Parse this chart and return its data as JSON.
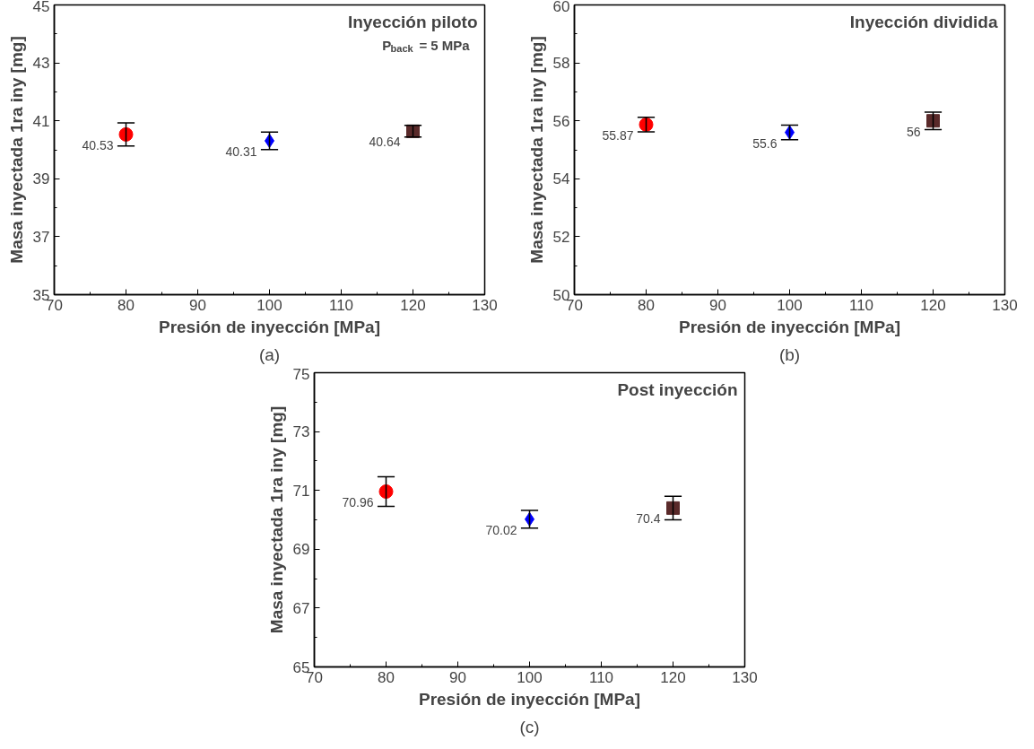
{
  "chart_data": [
    {
      "type": "scatter",
      "xlabel": "Presión de inyección [MPa]",
      "ylabel": "Masa inyectada 1ra iny [mg]",
      "xlim": [
        70,
        130
      ],
      "xticks": [
        70,
        80,
        90,
        100,
        110,
        120,
        130
      ],
      "ylim": [
        35,
        45
      ],
      "yticks": [
        35,
        37,
        39,
        41,
        43,
        45
      ],
      "grid": false,
      "annotations": [
        "Inyección piloto",
        "P$_{back}$ = 5 MPa",
        "(a)"
      ],
      "series": [
        {
          "color": "#ff0000",
          "marker": "circle",
          "x": [
            80
          ],
          "values": [
            40.53
          ],
          "errors": [
            0.4
          ],
          "value_labels": [
            "40.53"
          ]
        },
        {
          "color": "#0000ff",
          "marker": "diamond",
          "x": [
            100
          ],
          "values": [
            40.31
          ],
          "errors": [
            0.3
          ],
          "value_labels": [
            "40.31"
          ]
        },
        {
          "color": "#5a2a2a",
          "marker": "square",
          "x": [
            120
          ],
          "values": [
            40.64
          ],
          "errors": [
            0.2
          ],
          "value_labels": [
            "40.64"
          ]
        }
      ]
    },
    {
      "type": "scatter",
      "xlabel": "Presión de inyección [MPa]",
      "ylabel": "Masa inyectada 1ra iny [mg]",
      "xlim": [
        70,
        130
      ],
      "xticks": [
        70,
        80,
        90,
        100,
        110,
        120,
        130
      ],
      "ylim": [
        50,
        60
      ],
      "yticks": [
        50,
        52,
        54,
        56,
        58,
        60
      ],
      "grid": false,
      "annotations": [
        "Inyección dividida",
        "(b)"
      ],
      "series": [
        {
          "color": "#ff0000",
          "marker": "circle",
          "x": [
            80
          ],
          "values": [
            55.87
          ],
          "errors": [
            0.25
          ],
          "value_labels": [
            "55.87"
          ]
        },
        {
          "color": "#0000ff",
          "marker": "diamond",
          "x": [
            100
          ],
          "values": [
            55.6
          ],
          "errors": [
            0.25
          ],
          "value_labels": [
            "55.6"
          ]
        },
        {
          "color": "#5a2a2a",
          "marker": "square",
          "x": [
            120
          ],
          "values": [
            56
          ],
          "errors": [
            0.3
          ],
          "value_labels": [
            "56"
          ]
        }
      ]
    },
    {
      "type": "scatter",
      "xlabel": "Presión de inyección [MPa]",
      "ylabel": "Masa inyectada 1ra iny [mg]",
      "xlim": [
        70,
        130
      ],
      "xticks": [
        70,
        80,
        90,
        100,
        110,
        120,
        130
      ],
      "ylim": [
        65,
        75
      ],
      "yticks": [
        65,
        67,
        69,
        71,
        73,
        75
      ],
      "grid": false,
      "annotations": [
        "Post inyección",
        "(c)"
      ],
      "series": [
        {
          "color": "#ff0000",
          "marker": "circle",
          "x": [
            80
          ],
          "values": [
            70.96
          ],
          "errors": [
            0.5
          ],
          "value_labels": [
            "70.96"
          ]
        },
        {
          "color": "#0000ff",
          "marker": "diamond",
          "x": [
            100
          ],
          "values": [
            70.02
          ],
          "errors": [
            0.3
          ],
          "value_labels": [
            "70.02"
          ]
        },
        {
          "color": "#5a2a2a",
          "marker": "square",
          "x": [
            120
          ],
          "values": [
            70.4
          ],
          "errors": [
            0.4
          ],
          "value_labels": [
            "70.4"
          ]
        }
      ]
    }
  ]
}
